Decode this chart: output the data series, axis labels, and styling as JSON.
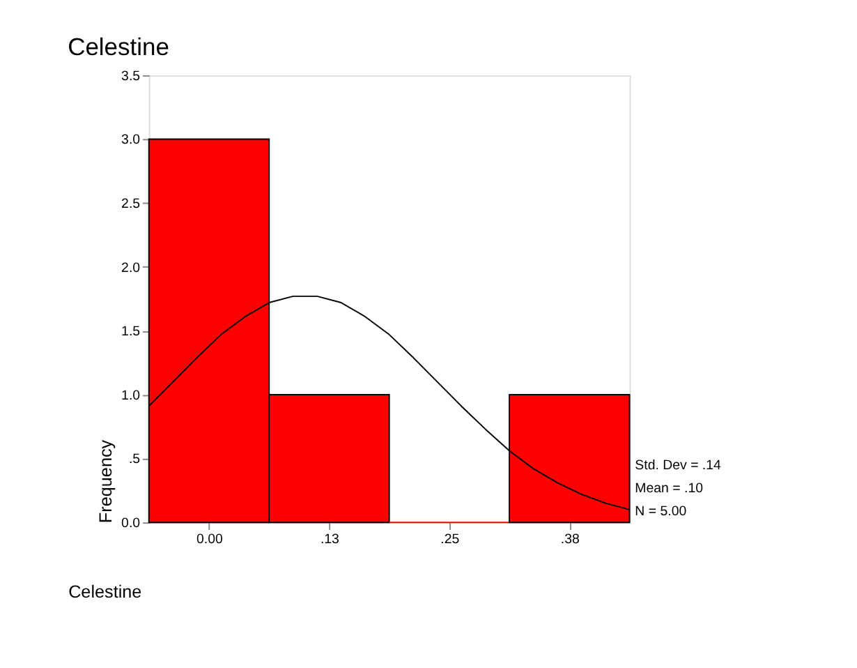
{
  "chart_data": {
    "type": "histogram",
    "title": "Celestine",
    "xlabel": "Celestine",
    "ylabel": "Frequency",
    "bins": [
      -0.0625,
      0.0625,
      0.1875,
      0.3125,
      0.4375
    ],
    "values": [
      3,
      1,
      0,
      1
    ],
    "color": "#ff0000",
    "xlim": [
      -0.0625,
      0.4375
    ],
    "xticks": [
      {
        "value": 0,
        "label": "0.00"
      },
      {
        "value": 0.125,
        "label": ".13"
      },
      {
        "value": 0.25,
        "label": ".25"
      },
      {
        "value": 0.375,
        "label": ".38"
      }
    ],
    "ylim": [
      0,
      3.5
    ],
    "yticks": [
      {
        "value": 0,
        "label": "0.0"
      },
      {
        "value": 0.5,
        "label": ".5"
      },
      {
        "value": 1,
        "label": "1.0"
      },
      {
        "value": 1.5,
        "label": "1.5"
      },
      {
        "value": 2,
        "label": "2.0"
      },
      {
        "value": 2.5,
        "label": "2.5"
      },
      {
        "value": 3,
        "label": "3.0"
      },
      {
        "value": 3.5,
        "label": "3.5"
      }
    ],
    "series": [
      {
        "type": "line",
        "color": "#000000",
        "x": [
          -0.0625,
          -0.0375,
          -0.0125,
          0.0125,
          0.0375,
          0.0625,
          0.0875,
          0.1125,
          0.1375,
          0.1625,
          0.1875,
          0.2125,
          0.2375,
          0.2625,
          0.2875,
          0.3125,
          0.3375,
          0.3625,
          0.3875,
          0.4125,
          0.4375
        ],
        "values": [
          0.91,
          1.1,
          1.29,
          1.47,
          1.61,
          1.72,
          1.77,
          1.77,
          1.72,
          1.61,
          1.47,
          1.29,
          1.1,
          0.91,
          0.73,
          0.56,
          0.42,
          0.31,
          0.22,
          0.15,
          0.1
        ]
      }
    ],
    "annotations": [
      "Std. Dev = .14",
      "Mean = .10",
      "N = 5.00"
    ],
    "grid": false
  }
}
